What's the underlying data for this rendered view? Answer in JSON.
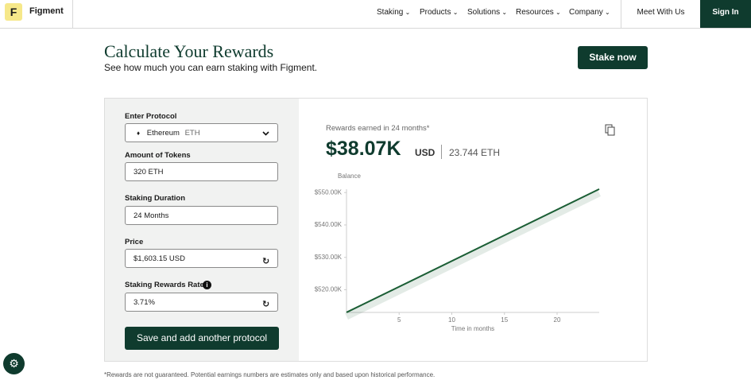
{
  "nav": {
    "logo_letter": "F",
    "brand": "Figment",
    "menu": [
      "Staking",
      "Products",
      "Solutions",
      "Resources",
      "Company"
    ],
    "meet": "Meet With Us",
    "sign_in": "Sign In"
  },
  "header": {
    "title": "Calculate Your Rewards",
    "subtitle": "See how much you can earn staking with Figment.",
    "cta": "Stake now"
  },
  "form": {
    "fields": [
      {
        "label": "Enter Protocol",
        "value": "Ethereum",
        "unit": "ETH"
      },
      {
        "label": "Amount of Tokens",
        "value": "320 ETH"
      },
      {
        "label": "Staking Duration",
        "value": "24 Months"
      },
      {
        "label": "Price",
        "value": "$1,603.15 USD"
      },
      {
        "label": "Staking Rewards Rate",
        "value": "3.71%"
      }
    ],
    "button": "Save and add another protocol"
  },
  "summary": {
    "caption": "Rewards earned in 24 months*",
    "amount": "$38.07K",
    "currency": "USD",
    "eth": "23.744 ETH"
  },
  "chart_data": {
    "type": "line",
    "ylabel": "Balance",
    "xlabel": "Time in months",
    "x": [
      0,
      24
    ],
    "series": [
      {
        "color": "#1b5e35",
        "values": [
          513.01,
          551.07
        ]
      }
    ],
    "xlim": [
      0,
      24
    ],
    "ylim": [
      513,
      553
    ],
    "xticks": [
      5,
      10,
      15,
      20
    ],
    "yticks": [
      {
        "value": 520,
        "label": "$520.00K"
      },
      {
        "value": 530,
        "label": "$530.00K"
      },
      {
        "value": 540,
        "label": "$540.00K"
      },
      {
        "value": 550,
        "label": "$550.00K"
      }
    ]
  },
  "footnote": "*Rewards are not guaranteed. Potential earnings numbers are estimates only and based upon historical performance."
}
